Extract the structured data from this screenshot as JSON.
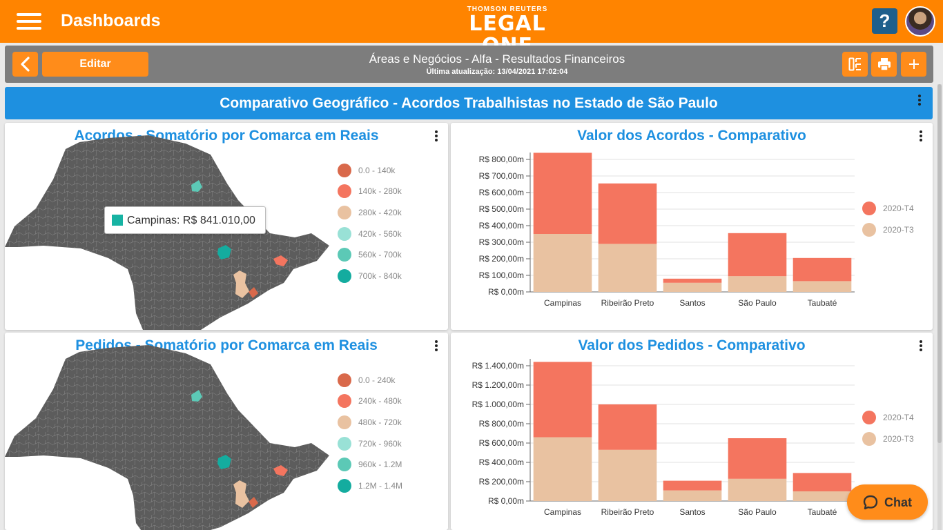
{
  "header": {
    "title": "Dashboards",
    "brand_top": "THOMSON REUTERS",
    "brand_main": "LEGAL ONE",
    "help_label": "?"
  },
  "toolbar": {
    "edit_label": "Editar",
    "title": "Áreas e Negócios - Alfa - Resultados Financeiros",
    "subtitle": "Última atualização: 13/04/2021 17:02:04"
  },
  "banner": {
    "title": "Comparativo Geográfico - Acordos Trabalhistas no Estado de São Paulo"
  },
  "cards": {
    "acordos_map": {
      "title": "Acordos - Somatório por Comarca em Reais",
      "legend": [
        {
          "label": "0.0 - 140k",
          "color": "#d9694b"
        },
        {
          "label": "140k - 280k",
          "color": "#f4755f"
        },
        {
          "label": "280k - 420k",
          "color": "#e9c2a1"
        },
        {
          "label": "420k - 560k",
          "color": "#99e1d6"
        },
        {
          "label": "560k - 700k",
          "color": "#5cc9b6"
        },
        {
          "label": "700k - 840k",
          "color": "#14ac9f"
        }
      ],
      "tooltip": "Campinas: R$ 841.010,00"
    },
    "acordos_chart": {
      "title": "Valor dos Acordos - Comparativo"
    },
    "pedidos_map": {
      "title": "Pedidos - Somatório por Comarca em Reais",
      "legend": [
        {
          "label": "0.0 - 240k",
          "color": "#d9694b"
        },
        {
          "label": "240k - 480k",
          "color": "#f4755f"
        },
        {
          "label": "480k - 720k",
          "color": "#e9c2a1"
        },
        {
          "label": "720k - 960k",
          "color": "#99e1d6"
        },
        {
          "label": "960k - 1.2M",
          "color": "#5cc9b6"
        },
        {
          "label": "1.2M - 1.4M",
          "color": "#14ac9f"
        }
      ]
    },
    "pedidos_chart": {
      "title": "Valor dos Pedidos - Comparativo"
    }
  },
  "chart_data": [
    {
      "type": "bar",
      "stacked": true,
      "title": "Valor dos Acordos - Comparativo",
      "categories": [
        "Campinas",
        "Ribeirão Preto",
        "Santos",
        "São Paulo",
        "Taubaté"
      ],
      "series": [
        {
          "name": "2020-T3",
          "color": "#e9c2a1",
          "values": [
            350,
            290,
            55,
            95,
            65
          ]
        },
        {
          "name": "2020-T4",
          "color": "#f4755f",
          "values": [
            490,
            365,
            25,
            260,
            140
          ]
        }
      ],
      "yticks": [
        "R$ 0,00m",
        "R$ 100,00m",
        "R$ 200,00m",
        "R$ 300,00m",
        "R$ 400,00m",
        "R$ 500,00m",
        "R$ 600,00m",
        "R$ 700,00m",
        "R$ 800,00m"
      ],
      "ylim": [
        0,
        800
      ],
      "grid": true,
      "legend_position": "right"
    },
    {
      "type": "bar",
      "stacked": true,
      "title": "Valor dos Pedidos - Comparativo",
      "categories": [
        "Campinas",
        "Ribeirão Preto",
        "Santos",
        "São Paulo",
        "Taubaté"
      ],
      "series": [
        {
          "name": "2020-T3",
          "color": "#e9c2a1",
          "values": [
            660,
            530,
            110,
            230,
            100
          ]
        },
        {
          "name": "2020-T4",
          "color": "#f4755f",
          "values": [
            780,
            470,
            100,
            420,
            190
          ]
        }
      ],
      "yticks": [
        "R$ 0,00m",
        "R$ 200,00m",
        "R$ 400,00m",
        "R$ 600,00m",
        "R$ 800,00m",
        "R$ 1.000,00m",
        "R$ 1.200,00m",
        "R$ 1.400,00m"
      ],
      "ylim": [
        0,
        1400
      ],
      "grid": true,
      "legend_position": "right"
    }
  ],
  "chat": {
    "label": "Chat"
  }
}
